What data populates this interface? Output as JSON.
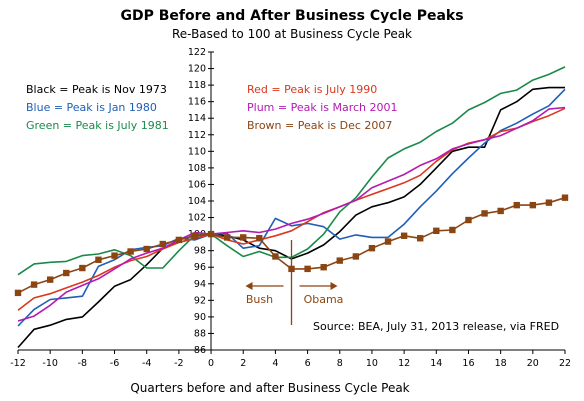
{
  "chart_data": {
    "type": "line",
    "title": "GDP Before and After Business Cycle Peaks",
    "subtitle": "Re-Based to 100 at Business Cycle Peak",
    "xlabel": "Quarters before and after Business Cycle Peak",
    "ylabel": "",
    "xlim": [
      -12,
      22
    ],
    "ylim": [
      86,
      122
    ],
    "x_ticks": [
      "-12",
      "-10",
      "-8",
      "-6",
      "-4",
      "-2",
      "0",
      "2",
      "4",
      "6",
      "8",
      "10",
      "12",
      "14",
      "16",
      "18",
      "20",
      "22"
    ],
    "y_ticks": [
      "86",
      "88",
      "90",
      "92",
      "94",
      "96",
      "98",
      "100",
      "102",
      "104",
      "106",
      "108",
      "110",
      "112",
      "114",
      "116",
      "118",
      "120",
      "122"
    ],
    "legend_left": [
      {
        "text": "Black = Peak is Nov 1973",
        "color": "#000000"
      },
      {
        "text": "Blue = Peak is Jan 1980",
        "color": "#1f5fb5"
      },
      {
        "text": "Green = Peak is July 1981",
        "color": "#1a8a4a"
      }
    ],
    "legend_right": [
      {
        "text": "Red = Peak is July 1990",
        "color": "#d9381e"
      },
      {
        "text": "Plum = Peak is March 2001",
        "color": "#b41ab4"
      },
      {
        "text": "Brown = Peak is Dec 2007",
        "color": "#8B4513"
      }
    ],
    "annotations": {
      "bush": "Bush",
      "obama": "Obama",
      "source": "Source:  BEA, July 31, 2013 release, via FRED"
    },
    "series": [
      {
        "color": "#000000",
        "marker": "none",
        "x": [
          -12,
          -11,
          -10,
          -9,
          -8,
          -7,
          -6,
          -5,
          -4,
          -3,
          -2,
          -1,
          0,
          1,
          2,
          3,
          4,
          5,
          6,
          7,
          8,
          9,
          10,
          11,
          12,
          13,
          14,
          15,
          16,
          17,
          18,
          19,
          20,
          21,
          22
        ],
        "values": [
          86.3,
          88.5,
          89.0,
          89.7,
          90.0,
          91.8,
          93.7,
          94.5,
          96.3,
          98.3,
          99.0,
          99.5,
          100.0,
          99.8,
          99.3,
          98.3,
          98.0,
          97.0,
          97.7,
          98.7,
          100.3,
          102.3,
          103.3,
          103.8,
          104.5,
          106.0,
          108.0,
          110.0,
          110.5,
          110.5,
          115.0,
          116.0,
          117.5,
          117.7,
          117.7
        ]
      },
      {
        "color": "#1f5fb5",
        "marker": "none",
        "x": [
          -12,
          -11,
          -10,
          -9,
          -8,
          -7,
          -6,
          -5,
          -4,
          -3,
          -2,
          -1,
          0,
          1,
          2,
          3,
          4,
          5,
          6,
          7,
          8,
          9,
          10,
          11,
          12,
          13,
          14,
          15,
          16,
          17,
          18,
          19,
          20,
          21,
          22
        ],
        "values": [
          88.9,
          90.9,
          92.1,
          92.3,
          92.5,
          96.1,
          96.9,
          98.1,
          98.4,
          98.6,
          99.5,
          99.3,
          100.0,
          100.1,
          98.3,
          98.6,
          101.9,
          101.0,
          101.3,
          100.9,
          99.4,
          99.9,
          99.6,
          99.6,
          101.2,
          103.3,
          105.2,
          107.3,
          109.2,
          111.0,
          112.5,
          113.4,
          114.5,
          115.5,
          117.5
        ]
      },
      {
        "color": "#1a8a4a",
        "marker": "none",
        "x": [
          -12,
          -11,
          -10,
          -9,
          -8,
          -7,
          -6,
          -5,
          -4,
          -3,
          -2,
          -1,
          0,
          1,
          2,
          3,
          4,
          5,
          6,
          7,
          8,
          9,
          10,
          11,
          12,
          13,
          14,
          15,
          16,
          17,
          18,
          19,
          20,
          21,
          22
        ],
        "values": [
          95.1,
          96.4,
          96.6,
          96.7,
          97.4,
          97.6,
          98.1,
          97.4,
          95.9,
          95.9,
          98.0,
          99.9,
          100.0,
          98.6,
          97.3,
          97.9,
          97.2,
          97.2,
          98.2,
          100.0,
          102.7,
          104.4,
          106.9,
          109.2,
          110.3,
          111.1,
          112.4,
          113.4,
          115.0,
          115.9,
          117.0,
          117.4,
          118.6,
          119.3,
          120.2
        ]
      },
      {
        "color": "#d9381e",
        "marker": "none",
        "x": [
          -12,
          -11,
          -10,
          -9,
          -8,
          -7,
          -6,
          -5,
          -4,
          -3,
          -2,
          -1,
          0,
          1,
          2,
          3,
          4,
          5,
          6,
          7,
          8,
          9,
          10,
          11,
          12,
          13,
          14,
          15,
          16,
          17,
          18,
          19,
          20,
          21,
          22
        ],
        "values": [
          90.8,
          92.3,
          92.8,
          93.5,
          94.2,
          95.0,
          96.0,
          96.8,
          97.3,
          98.2,
          99.0,
          99.5,
          100.0,
          99.3,
          98.8,
          99.3,
          99.8,
          100.4,
          101.5,
          102.6,
          103.3,
          104.1,
          104.8,
          105.5,
          106.2,
          107.1,
          108.8,
          110.2,
          111.0,
          111.4,
          112.4,
          112.8,
          113.6,
          114.3,
          115.2
        ]
      },
      {
        "color": "#b41ab4",
        "marker": "none",
        "x": [
          -12,
          -11,
          -10,
          -9,
          -8,
          -7,
          -6,
          -5,
          -4,
          -3,
          -2,
          -1,
          0,
          1,
          2,
          3,
          4,
          5,
          6,
          7,
          8,
          9,
          10,
          11,
          12,
          13,
          14,
          15,
          16,
          17,
          18,
          19,
          20,
          21,
          22
        ],
        "values": [
          89.5,
          90.1,
          91.4,
          93.0,
          93.8,
          94.6,
          95.8,
          97.0,
          97.7,
          98.3,
          99.3,
          100.2,
          100.0,
          100.2,
          100.4,
          100.2,
          100.6,
          101.3,
          101.8,
          102.5,
          103.3,
          104.1,
          105.6,
          106.4,
          107.2,
          108.3,
          109.1,
          110.3,
          110.9,
          111.4,
          111.9,
          112.8,
          113.7,
          115.1,
          115.3
        ]
      },
      {
        "color": "#8B4513",
        "marker": "square",
        "x": [
          -12,
          -11,
          -10,
          -9,
          -8,
          -7,
          -6,
          -5,
          -4,
          -3,
          -2,
          -1,
          0,
          1,
          2,
          3,
          4,
          5,
          6,
          7,
          8,
          9,
          10,
          11,
          12,
          13,
          14,
          15,
          16,
          17,
          18,
          19,
          20,
          21,
          22
        ],
        "values": [
          92.9,
          93.9,
          94.5,
          95.3,
          95.9,
          96.9,
          97.4,
          97.9,
          98.2,
          98.8,
          99.3,
          99.8,
          100.0,
          99.6,
          99.6,
          99.5,
          97.3,
          95.8,
          95.8,
          96.0,
          96.8,
          97.3,
          98.3,
          99.1,
          99.8,
          99.5,
          100.4,
          100.5,
          101.7,
          102.5,
          102.8,
          103.5,
          103.5,
          103.8,
          104.4
        ]
      }
    ]
  }
}
